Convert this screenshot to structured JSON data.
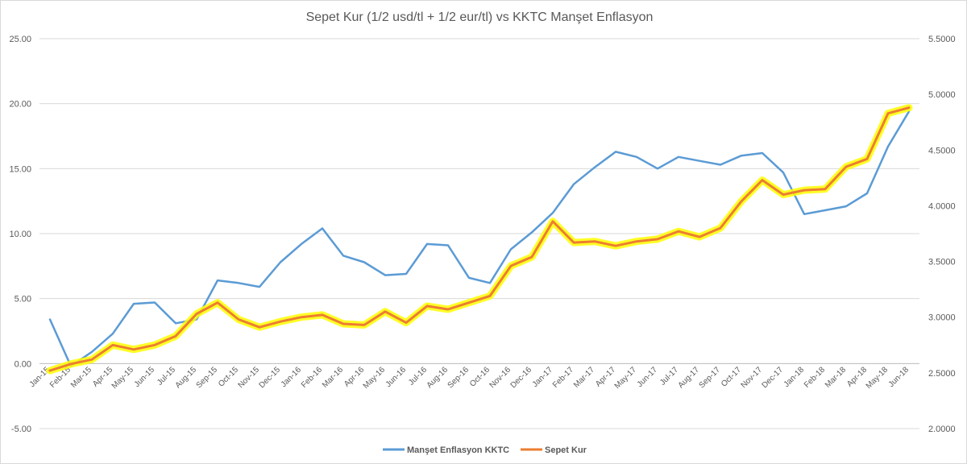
{
  "chart_data": {
    "type": "line",
    "title": "Sepet Kur (1/2 usd/tl + 1/2 eur/tl)  vs  KKTC Manşet Enflasyon",
    "xlabel": "",
    "ylabel": "",
    "categories": [
      "Jan-15",
      "Feb-15",
      "Mar-15",
      "Apr-15",
      "May-15",
      "Jun-15",
      "Jul-15",
      "Aug-15",
      "Sep-15",
      "Oct-15",
      "Nov-15",
      "Dec-15",
      "Jan-16",
      "Feb-16",
      "Mar-16",
      "Apr-16",
      "May-16",
      "Jun-16",
      "Jul-16",
      "Aug-16",
      "Sep-16",
      "Oct-16",
      "Nov-16",
      "Dec-16",
      "Jan-17",
      "Feb-17",
      "Mar-17",
      "Apr-17",
      "May-17",
      "Jun-17",
      "Jul-17",
      "Aug-17",
      "Sep-17",
      "Oct-17",
      "Nov-17",
      "Dec-17",
      "Jan-18",
      "Feb-18",
      "Mar-18",
      "Apr-18",
      "May-18",
      "Jun-18"
    ],
    "ylim_left": [
      -5,
      25
    ],
    "ylim_right": [
      2.0,
      5.5
    ],
    "yticks_left": [
      "25.00",
      "20.00",
      "15.00",
      "10.00",
      "5.00",
      "0.00",
      "-5.00"
    ],
    "yticks_right": [
      "5.5000",
      "5.0000",
      "4.5000",
      "4.0000",
      "3.5000",
      "3.0000",
      "2.5000",
      "2.0000"
    ],
    "grid": true,
    "legend_position": "bottom",
    "series": [
      {
        "name": "Manşet Enflasyon KKTC",
        "axis": "left",
        "color": "#5b9bd5",
        "values": [
          3.4,
          -0.2,
          0.9,
          2.3,
          4.6,
          4.7,
          3.1,
          3.4,
          6.4,
          6.2,
          5.9,
          7.8,
          9.2,
          10.4,
          8.3,
          7.8,
          6.8,
          6.9,
          9.2,
          9.1,
          6.6,
          6.2,
          8.8,
          10.1,
          11.6,
          13.8,
          15.1,
          16.3,
          15.9,
          15.0,
          15.9,
          15.6,
          15.3,
          16.0,
          16.2,
          14.7,
          11.5,
          11.8,
          12.1,
          13.1,
          16.7,
          19.4
        ]
      },
      {
        "name": "Sepet Kur",
        "axis": "right",
        "color": "#ed7d31",
        "halo": "#ffff00",
        "values": [
          2.52,
          2.58,
          2.62,
          2.75,
          2.71,
          2.75,
          2.83,
          3.03,
          3.13,
          2.98,
          2.91,
          2.96,
          3.0,
          3.02,
          2.94,
          2.93,
          3.05,
          2.95,
          3.1,
          3.07,
          3.13,
          3.19,
          3.46,
          3.54,
          3.86,
          3.67,
          3.68,
          3.64,
          3.68,
          3.7,
          3.77,
          3.72,
          3.8,
          4.04,
          4.23,
          4.1,
          4.14,
          4.15,
          4.35,
          4.42,
          4.83,
          4.88
        ]
      }
    ]
  }
}
